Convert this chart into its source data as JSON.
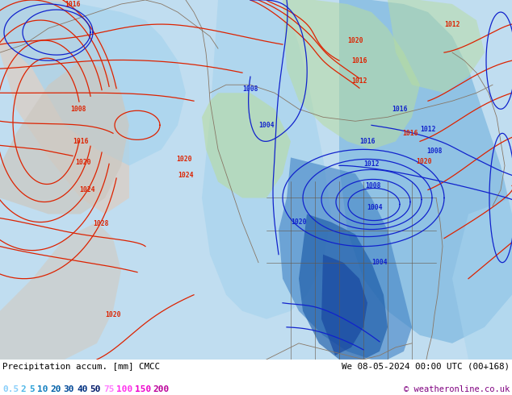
{
  "title_left": "Precipitation accum. [mm] CMCC",
  "title_right": "We 08-05-2024 00:00 UTC (00+168)",
  "copyright": "© weatheronline.co.uk",
  "colorbar_values": [
    "0.5",
    "2",
    "5",
    "10",
    "20",
    "30",
    "40",
    "50",
    "75",
    "100",
    "150",
    "200"
  ],
  "colorbar_colors": [
    "#87CEFA",
    "#50B8E8",
    "#28A0D8",
    "#1480C0",
    "#0060A8",
    "#004898",
    "#003080",
    "#001868",
    "#FF80FF",
    "#FF30EE",
    "#EE00CC",
    "#BB0099"
  ],
  "bg_color": "#ffffff",
  "fig_width": 6.34,
  "fig_height": 4.9,
  "dpi": 100,
  "map_ocean": "#c0ddf0",
  "map_light_precip": "#a8d4ee",
  "map_medium_precip": "#70b0dc",
  "map_heavy_precip": "#4888c8",
  "map_vheavy_precip": "#1c5ca8",
  "map_green": "#b8dca0",
  "map_land_gray": "#c8c0b8",
  "map_light_gray": "#dcd8d0",
  "red_isobar_color": "#dd2200",
  "blue_isobar_color": "#1122cc",
  "coastline_color": "#887766",
  "border_color": "#665544"
}
